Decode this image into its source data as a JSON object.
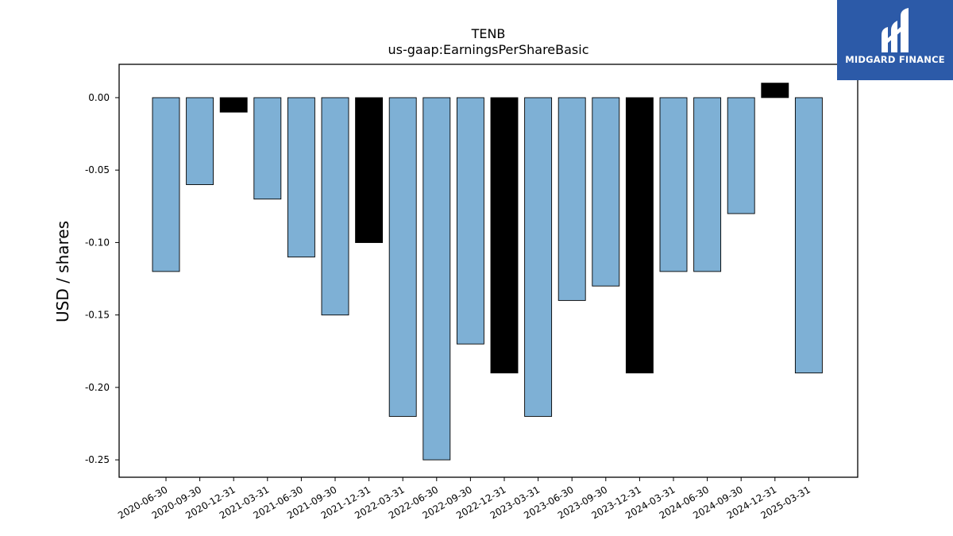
{
  "chart_data": {
    "type": "bar",
    "title": "TENB",
    "subtitle": "us-gaap:EarningsPerShareBasic",
    "xlabel": "",
    "ylabel": "USD / shares",
    "ylim": [
      -0.262,
      0.023
    ],
    "yticks": [
      "0.00",
      "-0.05",
      "-0.10",
      "-0.15",
      "-0.20",
      "-0.25"
    ],
    "categories": [
      "2020-06-30",
      "2020-09-30",
      "2020-12-31",
      "2021-03-31",
      "2021-06-30",
      "2021-09-30",
      "2021-12-31",
      "2022-03-31",
      "2022-06-30",
      "2022-09-30",
      "2022-12-31",
      "2023-03-31",
      "2023-06-30",
      "2023-09-30",
      "2023-12-31",
      "2024-03-31",
      "2024-06-30",
      "2024-09-30",
      "2024-12-31",
      "2025-03-31"
    ],
    "values": [
      -0.12,
      -0.06,
      -0.01,
      -0.07,
      -0.11,
      -0.15,
      -0.1,
      -0.22,
      -0.25,
      -0.17,
      -0.19,
      -0.22,
      -0.14,
      -0.13,
      -0.19,
      -0.12,
      -0.12,
      -0.08,
      0.01,
      -0.19
    ],
    "highlight": [
      false,
      false,
      true,
      false,
      false,
      false,
      true,
      false,
      false,
      false,
      true,
      false,
      false,
      false,
      true,
      false,
      false,
      false,
      true,
      false
    ],
    "colors": {
      "bar": "#7eb0d5",
      "highlight": "#000000",
      "edge": "#000000"
    },
    "grid": false,
    "legend": "none"
  },
  "logo": {
    "text": "MIDGARD FINANCE",
    "background": "#2c5aa8"
  }
}
